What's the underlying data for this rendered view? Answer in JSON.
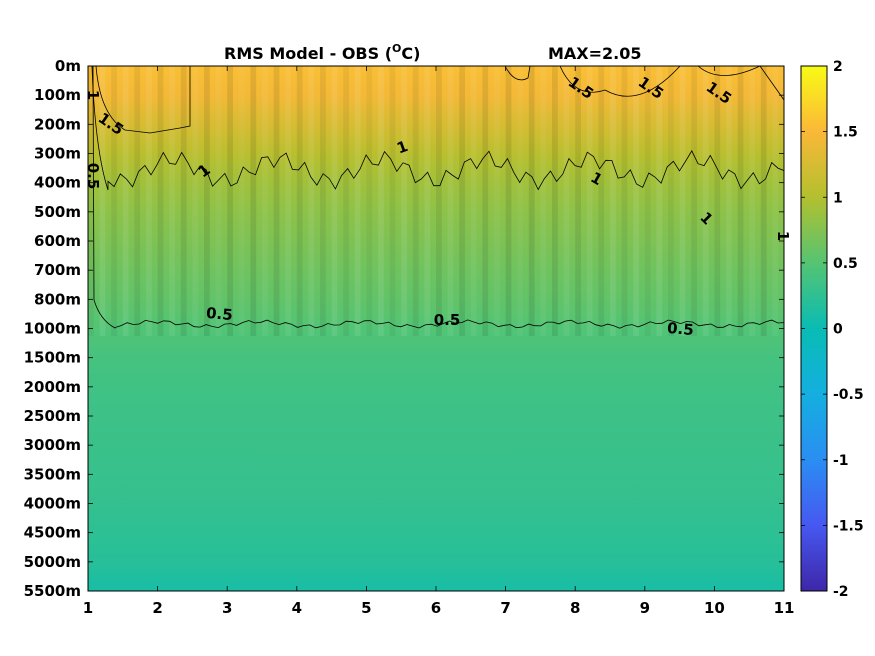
{
  "chart_data": {
    "type": "heatmap",
    "title": "RMS Model - OBS (°C)",
    "title_main": "RMS Model - OBS (",
    "title_sup": "O",
    "title_unit": "C)",
    "max_label": "MAX=2.05",
    "x": [
      1,
      2,
      3,
      4,
      5,
      6,
      7,
      8,
      9,
      10,
      11
    ],
    "xlim": [
      1,
      11
    ],
    "xticks": [
      "1",
      "2",
      "3",
      "4",
      "5",
      "6",
      "7",
      "8",
      "9",
      "10",
      "11"
    ],
    "yticks": [
      "0m",
      "100m",
      "200m",
      "300m",
      "400m",
      "500m",
      "600m",
      "700m",
      "800m",
      "1000m",
      "1500m",
      "2000m",
      "2500m",
      "3000m",
      "3500m",
      "4000m",
      "4500m",
      "5000m",
      "5500m"
    ],
    "colorbar": {
      "range": [
        -2,
        2
      ],
      "ticks": [
        "2",
        "1.5",
        "1",
        "0.5",
        "0",
        "-0.5",
        "-1",
        "-1.5",
        "-2"
      ],
      "tick_values": [
        2,
        1.5,
        1,
        0.5,
        0,
        -0.5,
        -1,
        -1.5,
        -2
      ]
    },
    "level_values": [
      1.55,
      1.45,
      1.25,
      1.05,
      0.9,
      0.8,
      0.72,
      0.64,
      0.57,
      0.48,
      0.4,
      0.36,
      0.34,
      0.32,
      0.3,
      0.28,
      0.24,
      0.2,
      0.1
    ],
    "contours": [
      {
        "level": 1.5,
        "label": "1.5"
      },
      {
        "level": 1,
        "label": "1"
      },
      {
        "level": 0.5,
        "label": "0.5"
      }
    ],
    "contour_labels": [
      "1.5",
      "1.5",
      "1.5",
      "1.5",
      "1",
      "1",
      "1",
      "1",
      "1",
      "1",
      "0.5",
      "0.5",
      "0.5",
      "0.5"
    ]
  }
}
